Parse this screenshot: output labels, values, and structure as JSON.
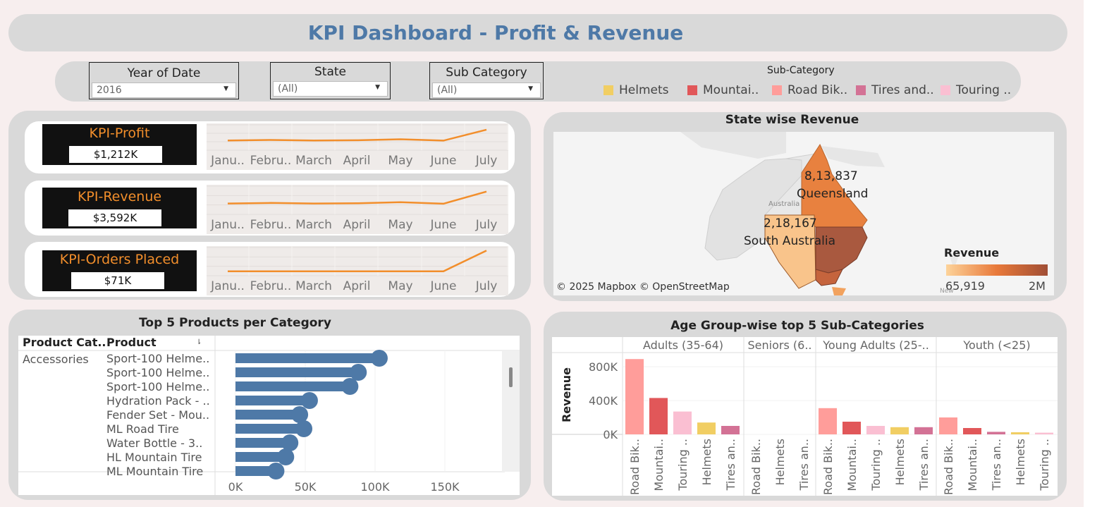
{
  "title": "KPI Dashboard - Profit & Revenue",
  "filters": [
    {
      "label": "Year of Date",
      "value": "2016"
    },
    {
      "label": "State",
      "value": "(All)"
    },
    {
      "label": "Sub Category",
      "value": "(All)"
    }
  ],
  "legend": {
    "title": "Sub-Category",
    "items": [
      {
        "label": "Helmets",
        "color": "#f1ce63"
      },
      {
        "label": "Mountai..",
        "color": "#e15759"
      },
      {
        "label": "Road Bik..",
        "color": "#ff9d9a"
      },
      {
        "label": "Tires and..",
        "color": "#d37295"
      },
      {
        "label": "Touring ..",
        "color": "#fabfd2"
      }
    ]
  },
  "kpis": [
    {
      "title": "KPI-Profit",
      "value": "$1,212K"
    },
    {
      "title": "KPI-Revenue",
      "value": "$3,592K"
    },
    {
      "title": "KPI-Orders Placed",
      "value": "$71K"
    }
  ],
  "map": {
    "title": "State wise Revenue",
    "labels": [
      {
        "value": "8,13,837",
        "state": "Queensland"
      },
      {
        "value": "2,18,167",
        "state": "South Australia"
      }
    ],
    "country_label": "Australia",
    "attribution": "© 2025 Mapbox © OpenStreetMap",
    "legend_title": "Revenue",
    "legend_min": "65,919",
    "legend_max": "2M",
    "new_label": "New"
  },
  "chart_data": [
    {
      "type": "line",
      "x": [
        "Janu..",
        "Febru..",
        "March",
        "April",
        "May",
        "June",
        "July"
      ],
      "series": [
        {
          "values": [
            1.0,
            1.05,
            1.0,
            1.02,
            1.12,
            0.98,
            2.1
          ]
        }
      ],
      "ylim": [
        0,
        2.6
      ]
    },
    {
      "type": "line",
      "x": [
        "Janu..",
        "Febru..",
        "March",
        "April",
        "May",
        "June",
        "July"
      ],
      "series": [
        {
          "values": [
            1.0,
            1.05,
            1.0,
            1.02,
            1.12,
            0.98,
            2.1
          ]
        }
      ],
      "ylim": [
        0,
        2.6
      ]
    },
    {
      "type": "line",
      "x": [
        "Janu..",
        "Febru..",
        "March",
        "April",
        "May",
        "June",
        "July"
      ],
      "series": [
        {
          "values": [
            1.0,
            1.0,
            1.0,
            1.0,
            1.0,
            1.0,
            5.6
          ]
        }
      ],
      "ylim": [
        0,
        6.3
      ]
    },
    {
      "type": "bar",
      "title": "Top 5 Products per Category",
      "headers": {
        "category": "Product Cat..",
        "product": "Product"
      },
      "category": "Accessories",
      "categories": [
        "Sport-100 Helme..",
        "Sport-100 Helme..",
        "Sport-100 Helme..",
        "Hydration Pack - ..",
        "Fender Set - Mou..",
        "ML Road Tire",
        "Water Bottle - 3..",
        "HL Mountain Tire",
        "ML Mountain Tire"
      ],
      "values": [
        103000,
        88000,
        82000,
        53000,
        46000,
        49000,
        39000,
        36000,
        29000
      ],
      "ticks": [
        "0K",
        "50K",
        "100K",
        "150K"
      ],
      "xlim": [
        0,
        190000
      ]
    },
    {
      "type": "bar",
      "title": "Age Group-wise top 5 Sub-Categories",
      "ylabel": "Revenue",
      "yticks": [
        "800K",
        "400K",
        "0K"
      ],
      "ylim": [
        0,
        950000
      ],
      "groups": [
        {
          "name": "Adults (35-64)",
          "bars": [
            {
              "label": "Road Bik..",
              "value": 890000,
              "color": "#ff9d9a"
            },
            {
              "label": "Mountai..",
              "value": 430000,
              "color": "#e15759"
            },
            {
              "label": "Touring ..",
              "value": 270000,
              "color": "#fabfd2"
            },
            {
              "label": "Helmets",
              "value": 140000,
              "color": "#f1ce63"
            },
            {
              "label": "Tires an..",
              "value": 100000,
              "color": "#d37295"
            }
          ]
        },
        {
          "name": "Seniors (6..",
          "bars": [
            {
              "label": "Road Bik..",
              "value": 0,
              "color": "#ff9d9a"
            },
            {
              "label": "Helmets",
              "value": 0,
              "color": "#f1ce63"
            },
            {
              "label": "Tires an..",
              "value": 0,
              "color": "#d37295"
            }
          ]
        },
        {
          "name": "Young Adults (25-..",
          "bars": [
            {
              "label": "Road Bik..",
              "value": 310000,
              "color": "#ff9d9a"
            },
            {
              "label": "Mountai..",
              "value": 150000,
              "color": "#e15759"
            },
            {
              "label": "Touring ..",
              "value": 100000,
              "color": "#fabfd2"
            },
            {
              "label": "Helmets",
              "value": 85000,
              "color": "#f1ce63"
            },
            {
              "label": "Tires an..",
              "value": 85000,
              "color": "#d37295"
            }
          ]
        },
        {
          "name": "Youth (<25)",
          "bars": [
            {
              "label": "Road Bik..",
              "value": 200000,
              "color": "#ff9d9a"
            },
            {
              "label": "Mountai..",
              "value": 75000,
              "color": "#e15759"
            },
            {
              "label": "Tires an..",
              "value": 30000,
              "color": "#d37295"
            },
            {
              "label": "Helmets",
              "value": 25000,
              "color": "#f1ce63"
            },
            {
              "label": "Touring ..",
              "value": 20000,
              "color": "#fabfd2"
            }
          ]
        }
      ]
    }
  ]
}
